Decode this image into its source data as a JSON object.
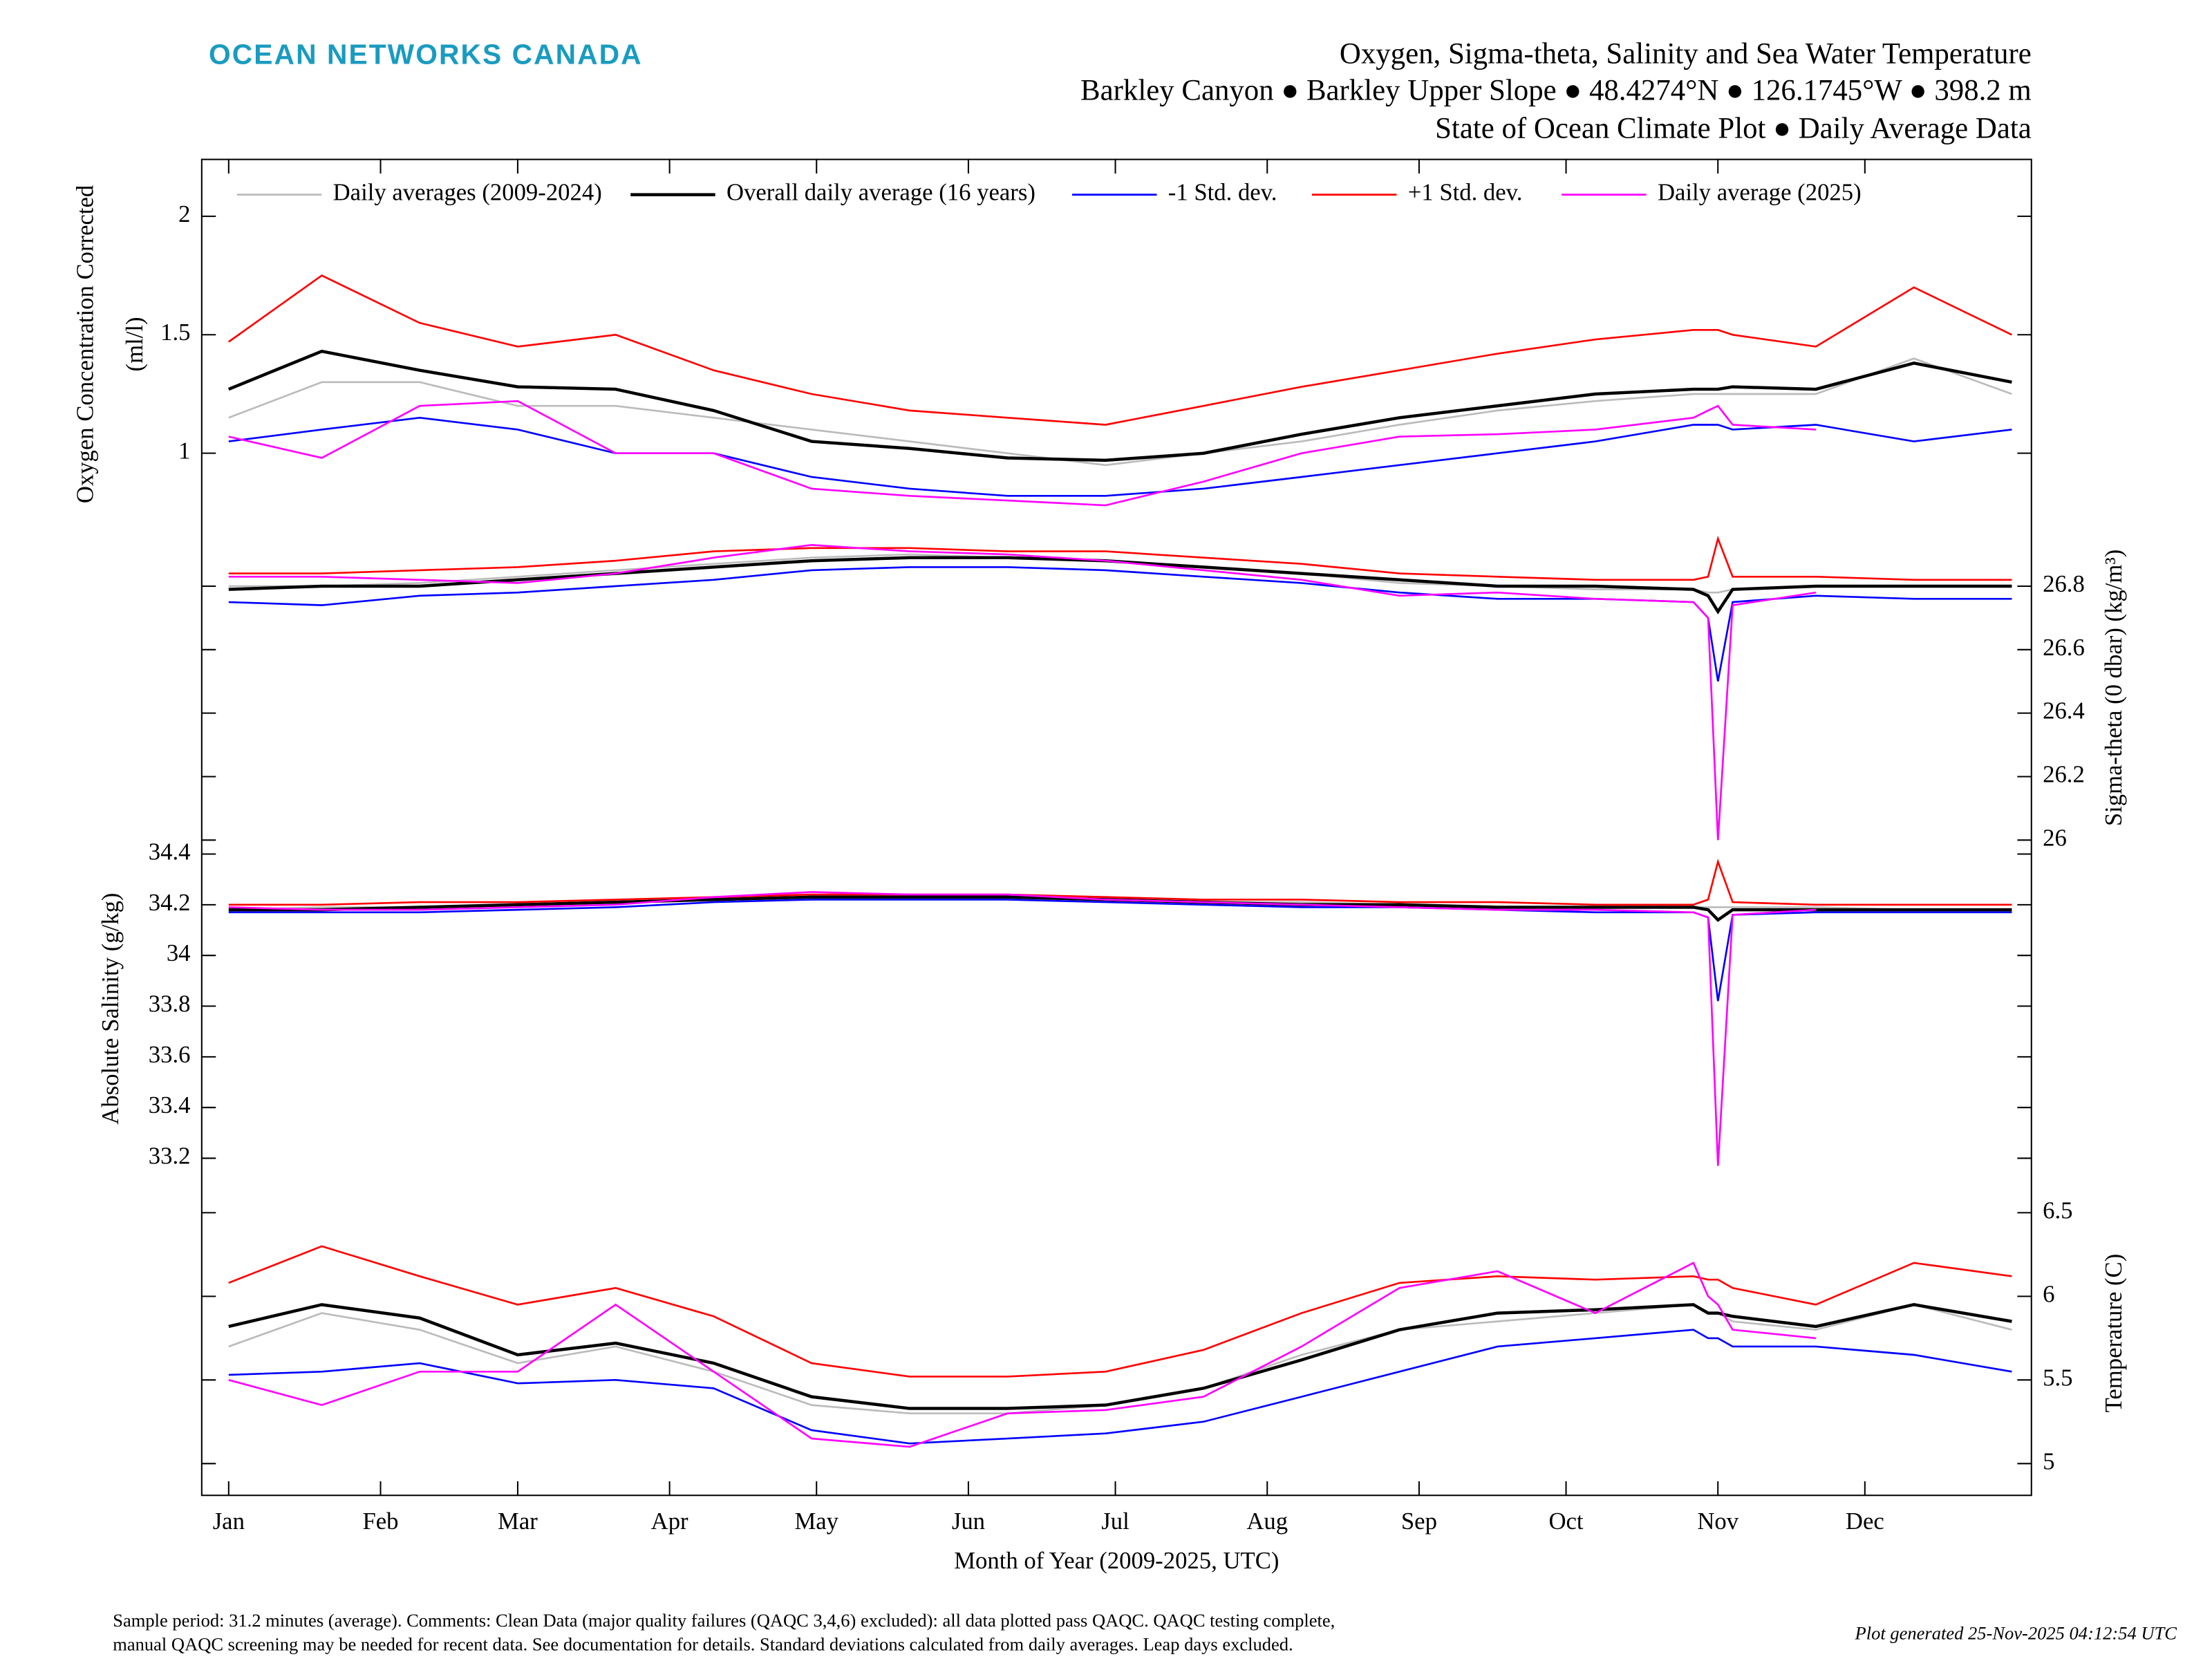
{
  "header": {
    "brand": "OCEAN NETWORKS CANADA",
    "title": [
      "Oxygen, Sigma-theta, Salinity and Sea Water Temperature",
      "Barkley Canyon ● Barkley Upper Slope ● 48.4274°N ● 126.1745°W ● 398.2 m",
      "State of Ocean Climate Plot ● Daily Average Data"
    ]
  },
  "chart_data": [
    {
      "type": "line",
      "ylabel": [
        "Oxygen Concentration Corrected",
        "(ml/l)"
      ],
      "yaxis_side": "left",
      "axis_color": "#000000",
      "legend": "top",
      "x": [
        1,
        20,
        40,
        60,
        80,
        100,
        120,
        140,
        160,
        180,
        200,
        220,
        240,
        260,
        280,
        300,
        303,
        305,
        308,
        325,
        345,
        365
      ],
      "xlim": [
        -4.5,
        369
      ],
      "ylim": [
        0.68,
        2.24
      ],
      "yticks": [
        1,
        1.5,
        2
      ],
      "series": [
        {
          "name": "Daily averages (2009-2024)",
          "color": "#bbbbbb",
          "values": [
            1.15,
            1.3,
            1.3,
            1.2,
            1.2,
            1.15,
            1.1,
            1.05,
            1.0,
            0.95,
            1.0,
            1.05,
            1.12,
            1.18,
            1.22,
            1.25,
            1.25,
            1.25,
            1.25,
            1.25,
            1.4,
            1.25
          ]
        },
        {
          "name": "Overall daily average (16 years)",
          "color": "#000000",
          "values": [
            1.27,
            1.43,
            1.35,
            1.28,
            1.27,
            1.18,
            1.05,
            1.02,
            0.98,
            0.97,
            1.0,
            1.08,
            1.15,
            1.2,
            1.25,
            1.27,
            1.27,
            1.27,
            1.28,
            1.27,
            1.38,
            1.3
          ]
        },
        {
          "name": "-1 Std. dev.",
          "color": "#0000ff",
          "values": [
            1.05,
            1.1,
            1.15,
            1.1,
            1.0,
            1.0,
            0.9,
            0.85,
            0.82,
            0.82,
            0.85,
            0.9,
            0.95,
            1.0,
            1.05,
            1.12,
            1.12,
            1.12,
            1.1,
            1.12,
            1.05,
            1.1
          ]
        },
        {
          "name": "+1 Std. dev.",
          "color": "#ff0000",
          "values": [
            1.47,
            1.75,
            1.55,
            1.45,
            1.5,
            1.35,
            1.25,
            1.18,
            1.15,
            1.12,
            1.2,
            1.28,
            1.35,
            1.42,
            1.48,
            1.52,
            1.52,
            1.52,
            1.5,
            1.45,
            1.7,
            1.5
          ]
        },
        {
          "name": "Daily average (2025)",
          "color": "#ff00ff",
          "values": [
            1.07,
            0.98,
            1.2,
            1.22,
            1.0,
            1.0,
            0.85,
            0.82,
            0.8,
            0.78,
            0.88,
            1.0,
            1.07,
            1.08,
            1.1,
            1.15,
            1.18,
            1.2,
            1.12,
            1.1,
            null,
            null
          ]
        }
      ]
    },
    {
      "type": "line",
      "ylabel": [
        "Sigma-theta (0 dbar) (kg/m³)"
      ],
      "yaxis_side": "right",
      "axis_color": "#808080",
      "x": [
        1,
        20,
        40,
        60,
        80,
        100,
        120,
        140,
        160,
        180,
        200,
        220,
        240,
        260,
        280,
        300,
        303,
        305,
        308,
        325,
        345,
        365
      ],
      "xlim": [
        -4.5,
        369
      ],
      "ylim": [
        25.98,
        26.98
      ],
      "yticks": [
        26,
        26.2,
        26.4,
        26.6,
        26.8
      ],
      "series": [
        {
          "color": "#bbbbbb",
          "values": [
            26.8,
            26.8,
            26.81,
            26.83,
            26.85,
            26.87,
            26.89,
            26.9,
            26.89,
            26.88,
            26.86,
            26.84,
            26.81,
            26.8,
            26.79,
            26.79,
            26.78,
            26.78,
            26.79,
            26.8,
            26.8,
            26.8
          ]
        },
        {
          "color": "#000000",
          "values": [
            26.79,
            26.8,
            26.8,
            26.82,
            26.84,
            26.86,
            26.88,
            26.89,
            26.89,
            26.88,
            26.86,
            26.84,
            26.82,
            26.8,
            26.8,
            26.79,
            26.77,
            26.72,
            26.79,
            26.8,
            26.8,
            26.8
          ]
        },
        {
          "color": "#0000ff",
          "values": [
            26.75,
            26.74,
            26.77,
            26.78,
            26.8,
            26.82,
            26.85,
            26.86,
            26.86,
            26.85,
            26.83,
            26.81,
            26.78,
            26.76,
            26.76,
            26.75,
            26.7,
            26.5,
            26.75,
            26.77,
            26.76,
            26.76
          ]
        },
        {
          "color": "#ff0000",
          "values": [
            26.84,
            26.84,
            26.85,
            26.86,
            26.88,
            26.91,
            26.92,
            26.92,
            26.91,
            26.91,
            26.89,
            26.87,
            26.84,
            26.83,
            26.82,
            26.82,
            26.83,
            26.95,
            26.83,
            26.83,
            26.82,
            26.82
          ]
        },
        {
          "color": "#ff00ff",
          "values": [
            26.83,
            26.83,
            26.82,
            26.81,
            26.84,
            26.89,
            26.93,
            26.91,
            26.9,
            26.88,
            26.85,
            26.82,
            26.77,
            26.78,
            26.76,
            26.75,
            26.7,
            26.0,
            26.74,
            26.78,
            null,
            null
          ]
        }
      ]
    },
    {
      "type": "line",
      "ylabel": [
        "Absolute Salinity (g/kg)"
      ],
      "yaxis_side": "left",
      "axis_color": "#000000",
      "x": [
        1,
        20,
        40,
        60,
        80,
        100,
        120,
        140,
        160,
        180,
        200,
        220,
        240,
        260,
        280,
        300,
        303,
        305,
        308,
        325,
        345,
        365
      ],
      "xlim": [
        -4.5,
        369
      ],
      "ylim": [
        33.15,
        34.43
      ],
      "yticks": [
        33.2,
        33.4,
        33.6,
        33.8,
        34,
        34.2,
        34.4
      ],
      "series": [
        {
          "color": "#bbbbbb",
          "values": [
            34.18,
            34.19,
            34.19,
            34.2,
            34.21,
            34.22,
            34.23,
            34.23,
            34.23,
            34.22,
            34.21,
            34.21,
            34.2,
            34.19,
            34.19,
            34.19,
            34.19,
            34.19,
            34.19,
            34.19,
            34.18,
            34.18
          ]
        },
        {
          "color": "#000000",
          "values": [
            34.18,
            34.18,
            34.19,
            34.2,
            34.21,
            34.22,
            34.23,
            34.23,
            34.23,
            34.22,
            34.21,
            34.2,
            34.2,
            34.19,
            34.19,
            34.19,
            34.18,
            34.14,
            34.18,
            34.18,
            34.18,
            34.18
          ]
        },
        {
          "color": "#0000ff",
          "values": [
            34.17,
            34.17,
            34.17,
            34.18,
            34.19,
            34.21,
            34.22,
            34.22,
            34.22,
            34.21,
            34.2,
            34.19,
            34.19,
            34.18,
            34.17,
            34.17,
            34.15,
            33.82,
            34.16,
            34.17,
            34.17,
            34.17
          ]
        },
        {
          "color": "#ff0000",
          "values": [
            34.2,
            34.2,
            34.21,
            34.21,
            34.22,
            34.23,
            34.24,
            34.24,
            34.24,
            34.23,
            34.22,
            34.22,
            34.21,
            34.21,
            34.2,
            34.2,
            34.22,
            34.37,
            34.21,
            34.2,
            34.2,
            34.2
          ]
        },
        {
          "color": "#ff00ff",
          "values": [
            34.19,
            34.18,
            34.18,
            34.19,
            34.2,
            34.23,
            34.25,
            34.24,
            34.24,
            34.22,
            34.21,
            34.2,
            34.19,
            34.18,
            34.18,
            34.17,
            34.15,
            33.17,
            34.16,
            34.18,
            null,
            null
          ]
        }
      ]
    },
    {
      "type": "line",
      "ylabel": [
        "Temperature (C)"
      ],
      "yaxis_side": "right",
      "axis_color": "#808080",
      "x": [
        1,
        20,
        40,
        60,
        80,
        100,
        120,
        140,
        160,
        180,
        200,
        220,
        240,
        260,
        280,
        300,
        303,
        305,
        308,
        325,
        345,
        365
      ],
      "xlim": [
        -4.5,
        369
      ],
      "xticks": [
        {
          "value": 1,
          "label": "Jan"
        },
        {
          "value": 32,
          "label": "Feb"
        },
        {
          "value": 60,
          "label": "Mar"
        },
        {
          "value": 91,
          "label": "Apr"
        },
        {
          "value": 121,
          "label": "May"
        },
        {
          "value": 152,
          "label": "Jun"
        },
        {
          "value": 182,
          "label": "Jul"
        },
        {
          "value": 213,
          "label": "Aug"
        },
        {
          "value": 244,
          "label": "Sep"
        },
        {
          "value": 274,
          "label": "Oct"
        },
        {
          "value": 305,
          "label": "Nov"
        },
        {
          "value": 335,
          "label": "Dec"
        }
      ],
      "xlabel": "Month of Year (2009-2025, UTC)",
      "ylim": [
        4.81,
        6.75
      ],
      "yticks": [
        5,
        5.5,
        6,
        6.5
      ],
      "series": [
        {
          "color": "#bbbbbb",
          "values": [
            5.7,
            5.9,
            5.8,
            5.6,
            5.7,
            5.55,
            5.35,
            5.3,
            5.3,
            5.35,
            5.45,
            5.65,
            5.8,
            5.85,
            5.9,
            5.95,
            5.9,
            5.9,
            5.85,
            5.8,
            5.95,
            5.8
          ]
        },
        {
          "color": "#000000",
          "values": [
            5.82,
            5.95,
            5.87,
            5.65,
            5.72,
            5.6,
            5.4,
            5.33,
            5.33,
            5.35,
            5.45,
            5.62,
            5.8,
            5.9,
            5.92,
            5.95,
            5.9,
            5.9,
            5.88,
            5.82,
            5.95,
            5.85
          ]
        },
        {
          "color": "#0000ff",
          "values": [
            5.53,
            5.55,
            5.6,
            5.48,
            5.5,
            5.45,
            5.2,
            5.12,
            5.15,
            5.18,
            5.25,
            5.4,
            5.55,
            5.7,
            5.75,
            5.8,
            5.75,
            5.75,
            5.7,
            5.7,
            5.65,
            5.55
          ]
        },
        {
          "color": "#ff0000",
          "values": [
            6.08,
            6.3,
            6.12,
            5.95,
            6.05,
            5.88,
            5.6,
            5.52,
            5.52,
            5.55,
            5.68,
            5.9,
            6.08,
            6.12,
            6.1,
            6.12,
            6.1,
            6.1,
            6.05,
            5.95,
            6.2,
            6.12
          ]
        },
        {
          "color": "#ff00ff",
          "values": [
            5.5,
            5.35,
            5.55,
            5.55,
            5.95,
            5.55,
            5.15,
            5.1,
            5.3,
            5.32,
            5.4,
            5.7,
            6.05,
            6.15,
            5.9,
            6.2,
            6.0,
            5.95,
            5.8,
            5.75,
            null,
            null
          ]
        }
      ]
    }
  ],
  "footer": {
    "notes": [
      "Sample period: 31.2 minutes (average).  Comments: Clean Data (major quality failures (QAQC 3,4,6) excluded): all data plotted pass QAQC. QAQC testing complete,",
      "manual QAQC screening may be needed for recent data. See documentation for details. Standard deviations calculated from daily averages. Leap days excluded."
    ],
    "generated": "Plot generated 25-Nov-2025 04:12:54 UTC"
  }
}
